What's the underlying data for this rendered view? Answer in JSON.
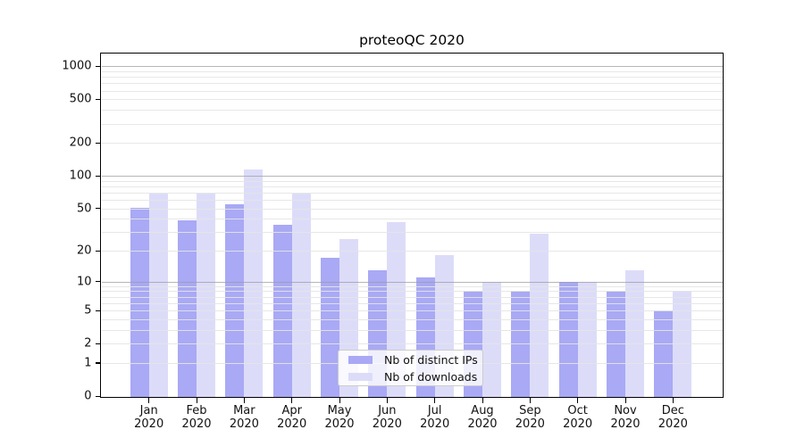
{
  "title": "proteoQC 2020",
  "colors": {
    "ips_bar": "#a9a9f5",
    "downloads_bar": "#dcdcf9",
    "grid_major": "#9e9e9e",
    "grid_minor": "#e4e4e4",
    "axis": "#000000",
    "text": "#111111",
    "legend_border": "#cccccc"
  },
  "legend": {
    "items": [
      {
        "label": "Nb of distinct IPs",
        "color_key": "ips_bar"
      },
      {
        "label": "Nb of downloads",
        "color_key": "downloads_bar"
      }
    ]
  },
  "chart_data": {
    "type": "bar",
    "title": "proteoQC 2020",
    "categories": [
      "Jan 2020",
      "Feb 2020",
      "Mar 2020",
      "Apr 2020",
      "May 2020",
      "Jun 2020",
      "Jul 2020",
      "Aug 2020",
      "Sep 2020",
      "Oct 2020",
      "Nov 2020",
      "Dec 2020"
    ],
    "series": [
      {
        "name": "Nb of distinct IPs",
        "color_key": "ips_bar",
        "values": [
          51,
          39,
          55,
          35,
          17,
          13,
          11,
          8,
          8,
          10,
          8,
          5
        ]
      },
      {
        "name": "Nb of downloads",
        "color_key": "downloads_bar",
        "values": [
          68,
          68,
          114,
          68,
          26,
          37,
          18,
          10,
          29,
          10,
          13,
          8
        ]
      }
    ],
    "xlabel": "",
    "ylabel": "",
    "yscale": "log1p",
    "yticks": [
      1000,
      500,
      200,
      100,
      50,
      20,
      10,
      5,
      2,
      1,
      0
    ],
    "ylim": [
      0,
      1330
    ],
    "grid": true,
    "grid_major_at": [
      10,
      100,
      1000
    ],
    "grid_on_top": true,
    "legend_position": "lower-center-inside"
  }
}
